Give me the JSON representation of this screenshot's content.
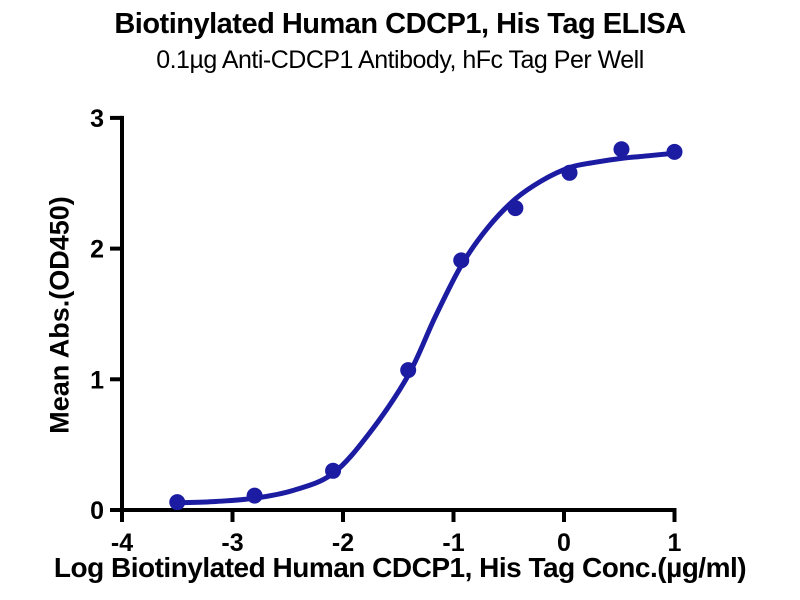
{
  "chart_data": {
    "type": "scatter",
    "title": "Biotinylated Human CDCP1, His Tag ELISA",
    "subtitle": "0.1µg Anti-CDCP1 Antibody, hFc Tag Per Well",
    "xlabel": "Log Biotinylated Human CDCP1, His Tag Conc.(µg/ml)",
    "ylabel": "Mean Abs.(OD450)",
    "xlim": [
      -4,
      1
    ],
    "ylim": [
      0,
      3
    ],
    "xticks": [
      -4,
      -3,
      -2,
      -1,
      0,
      1
    ],
    "yticks": [
      0,
      1,
      2,
      3
    ],
    "grid": false,
    "legend_position": "none",
    "axis_color": "#000000",
    "background_color": "#ffffff",
    "series": [
      {
        "name": "Biotinylated Human CDCP1, His Tag",
        "marker": "circle",
        "marker_color": "#1C1CA3",
        "line_color": "#1C1CA3",
        "points": {
          "x": [
            -3.5,
            -2.8,
            -2.09,
            -1.41,
            -0.93,
            -0.44,
            0.05,
            0.52,
            1.0
          ],
          "y": [
            0.06,
            0.11,
            0.3,
            1.07,
            1.91,
            2.31,
            2.58,
            2.76,
            2.74
          ]
        },
        "fit_curve": {
          "model": "4PL sigmoid",
          "x": [
            -3.5,
            -3.15,
            -2.8,
            -2.45,
            -2.09,
            -1.75,
            -1.41,
            -1.17,
            -0.93,
            -0.69,
            -0.44,
            -0.2,
            0.05,
            0.28,
            0.52,
            0.76,
            1.0
          ],
          "y": [
            0.055,
            0.065,
            0.09,
            0.15,
            0.28,
            0.6,
            1.03,
            1.47,
            1.87,
            2.16,
            2.38,
            2.52,
            2.62,
            2.66,
            2.69,
            2.71,
            2.73
          ]
        }
      }
    ]
  }
}
